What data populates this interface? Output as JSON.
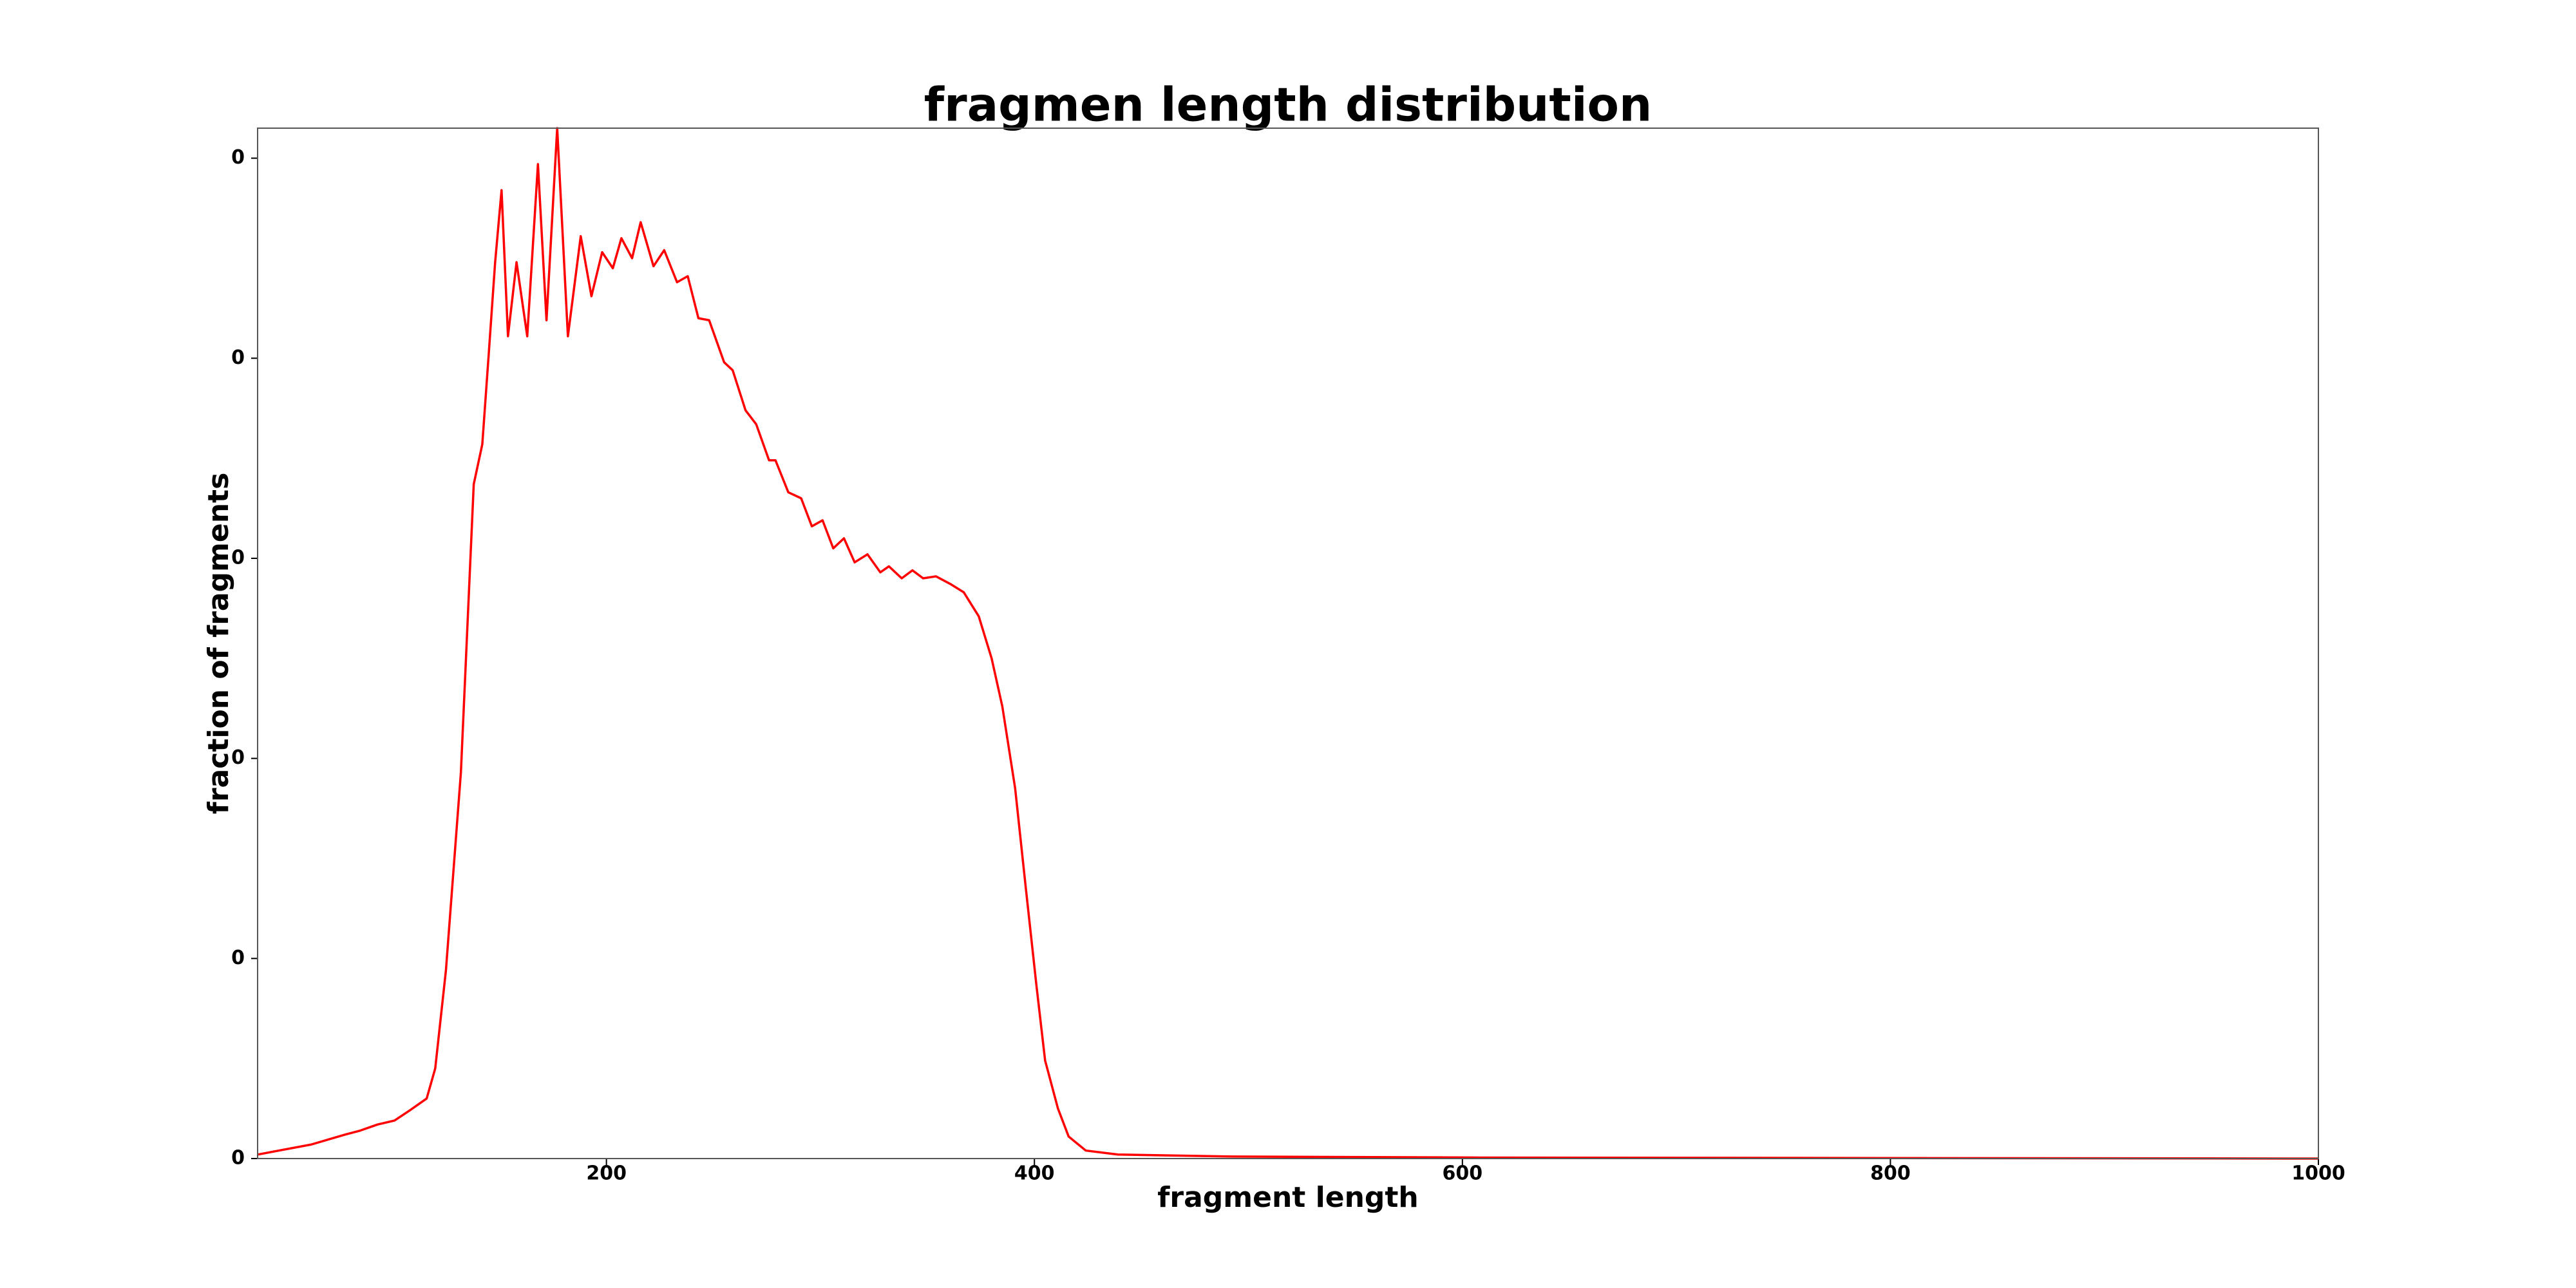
{
  "chart_data": {
    "type": "line",
    "title": "fragmen length distribution",
    "x_label": "fragment length",
    "y_label": "fraction of fragments",
    "x": [
      37,
      47,
      62,
      78,
      85,
      93,
      101,
      108,
      116,
      120,
      125,
      132,
      138,
      142,
      145,
      148,
      151,
      154,
      158,
      163,
      168,
      172,
      177,
      182,
      188,
      193,
      198,
      203,
      207,
      212,
      216,
      222,
      227,
      233,
      238,
      243,
      248,
      255,
      259,
      265,
      270,
      276,
      279,
      285,
      291,
      296,
      301,
      306,
      311,
      316,
      322,
      328,
      332,
      338,
      343,
      348,
      354,
      361,
      367,
      374,
      380,
      385,
      391,
      396,
      401,
      405,
      411,
      416,
      424,
      439,
      493,
      608,
      1000
    ],
    "series": [
      {
        "name": "fraction of fragments",
        "color": "#ff0000",
        "values": [
          2e-05,
          4e-05,
          7e-05,
          0.00012,
          0.00014,
          0.00017,
          0.00019,
          0.00024,
          0.0003,
          0.00045,
          0.00094,
          0.00193,
          0.00337,
          0.00357,
          0.00402,
          0.00448,
          0.00484,
          0.00411,
          0.00448,
          0.00411,
          0.00497,
          0.00419,
          0.00515,
          0.00411,
          0.00461,
          0.00431,
          0.00453,
          0.00445,
          0.0046,
          0.0045,
          0.00468,
          0.00446,
          0.00454,
          0.00438,
          0.00441,
          0.0042,
          0.00419,
          0.00398,
          0.00394,
          0.00374,
          0.00367,
          0.00349,
          0.00349,
          0.00333,
          0.0033,
          0.00316,
          0.00319,
          0.00305,
          0.0031,
          0.00298,
          0.00302,
          0.00293,
          0.00296,
          0.0029,
          0.00294,
          0.0029,
          0.00291,
          0.00287,
          0.00283,
          0.00271,
          0.0025,
          0.00226,
          0.00185,
          0.00135,
          0.00086,
          0.00049,
          0.00025,
          0.00011,
          4e-05,
          2e-05,
          1e-05,
          5e-06,
          0
        ]
      }
    ],
    "xlim": [
      37,
      1000
    ],
    "ylim": [
      0,
      0.00515
    ],
    "xticks": [
      200,
      400,
      600,
      800,
      1000
    ],
    "yticks": [
      0,
      {
        "value": 0.001,
        "label": "0"
      },
      {
        "value": 0.002,
        "label": "0"
      },
      {
        "value": 0.003,
        "label": "0"
      },
      {
        "value": 0.004,
        "label": "0"
      },
      {
        "value": 0.005,
        "label": "0"
      }
    ],
    "grid": false
  }
}
